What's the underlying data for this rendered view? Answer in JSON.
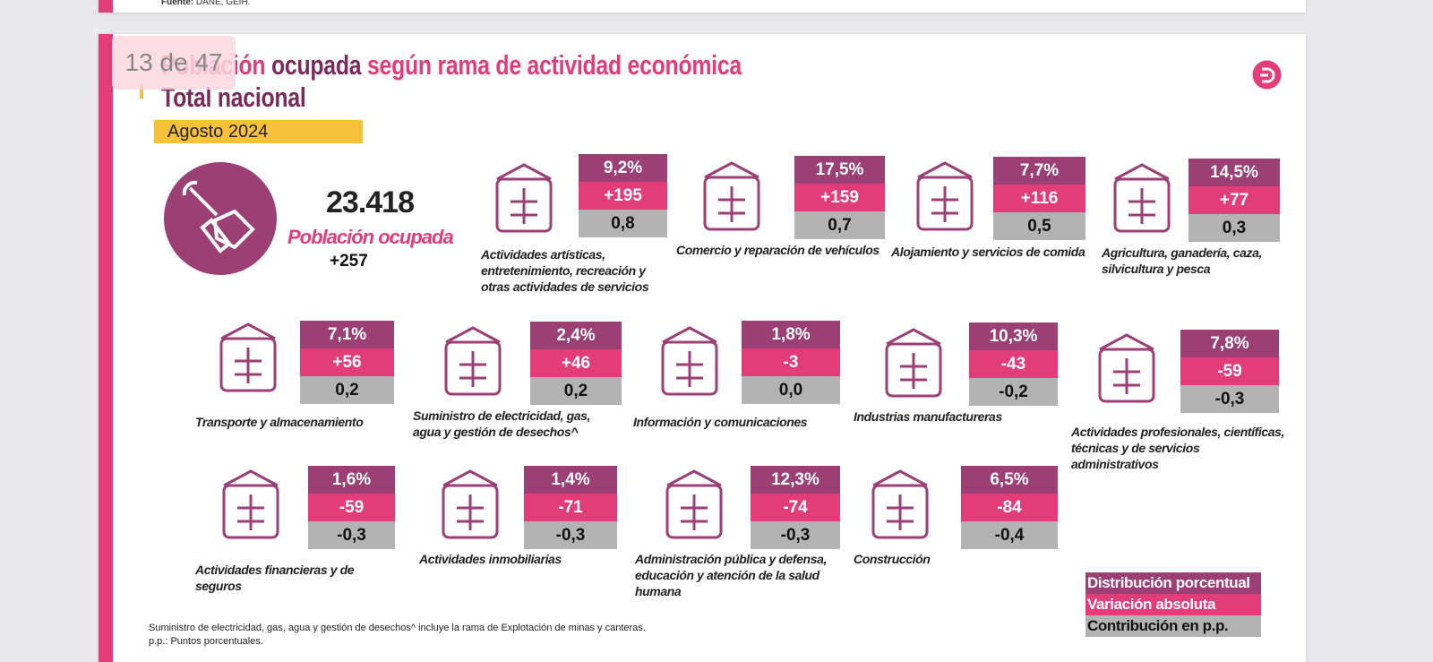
{
  "top_card": {
    "source_label": "Fuente:",
    "source_text": "DANE, GEIH."
  },
  "viewer": {
    "page_counter": "13 de 47"
  },
  "slide": {
    "title": {
      "part1": "Población",
      "part2": "ocupada",
      "part3": "según rama de actividad económica",
      "line2": "Total nacional"
    },
    "period": "Agosto 2024",
    "total": {
      "value": "23.418",
      "label": "Población ocupada",
      "change": "+257"
    },
    "sectors": [
      {
        "name": "Actividades artísticas, entretenimiento, recreación y otras actividades de servicios",
        "share": "9,2%",
        "change": "+195",
        "contribution": "0,8"
      },
      {
        "name": "Comercio y reparación de vehículos",
        "share": "17,5%",
        "change": "+159",
        "contribution": "0,7"
      },
      {
        "name": "Alojamiento y servicios de comida",
        "share": "7,7%",
        "change": "+116",
        "contribution": "0,5"
      },
      {
        "name": "Agricultura, ganadería, caza, silvicultura y pesca",
        "share": "14,5%",
        "change": "+77",
        "contribution": "0,3"
      },
      {
        "name": "Transporte y almacenamiento",
        "share": "7,1%",
        "change": "+56",
        "contribution": "0,2"
      },
      {
        "name": "Suministro de electricidad, gas, agua y gestión de desechos^",
        "share": "2,4%",
        "change": "+46",
        "contribution": "0,2"
      },
      {
        "name": "Información y comunicaciones",
        "share": "1,8%",
        "change": "-3",
        "contribution": "0,0"
      },
      {
        "name": "Industrias manufactureras",
        "share": "10,3%",
        "change": "-43",
        "contribution": "-0,2"
      },
      {
        "name": "Actividades profesionales, científicas, técnicas y de servicios administrativos",
        "share": "7,8%",
        "change": "-59",
        "contribution": "-0,3"
      },
      {
        "name": "Actividades financieras y de seguros",
        "share": "1,6%",
        "change": "-59",
        "contribution": "-0,3"
      },
      {
        "name": "Actividades inmobiliarias",
        "share": "1,4%",
        "change": "-71",
        "contribution": "-0,3"
      },
      {
        "name": "Administración pública y defensa, educación y atención de la salud humana",
        "share": "12,3%",
        "change": "-74",
        "contribution": "-0,3"
      },
      {
        "name": "Construcción",
        "share": "6,5%",
        "change": "-84",
        "contribution": "-0,4"
      }
    ],
    "legend": [
      "Distribución porcentual",
      "Variación absoluta",
      "Contribución en p.p."
    ],
    "footnotes": [
      "Suministro de electricidad, gas, agua y gestión de desechos^ incluye la rama de Explotación de minas y canteras.",
      "p.p.: Puntos porcentuales."
    ]
  }
}
